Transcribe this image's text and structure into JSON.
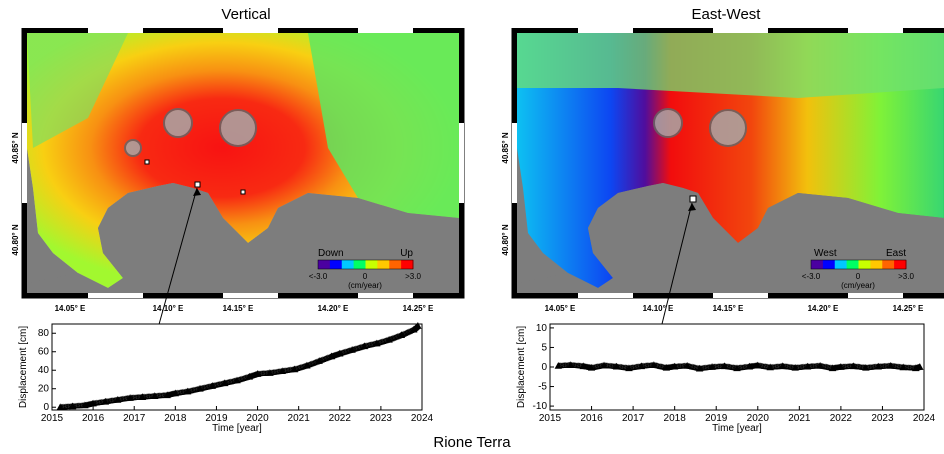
{
  "caption": "Rione Terra",
  "panels": [
    {
      "title": "Vertical",
      "lat_labels": [
        "40.85° N",
        "40.80° N"
      ],
      "lon_labels": [
        "14.05° E",
        "14.10° E",
        "14.15° E",
        "14.20° E",
        "14.25° E"
      ],
      "colorbar": {
        "left_label": "Down",
        "right_label": "Up",
        "min_label": "<-3.0",
        "mid_label": "0",
        "max_label": ">3.0",
        "unit": "(cm/year)",
        "colors": [
          "#4b00a0",
          "#0000ff",
          "#00c8ff",
          "#00ff64",
          "#c8ff00",
          "#ffc800",
          "#ff6400",
          "#ff0000"
        ]
      }
    },
    {
      "title": "East-West",
      "lat_labels": [
        "40.85° N",
        "40.80° N"
      ],
      "lon_labels": [
        "14.05° E",
        "14.10° E",
        "14.15° E",
        "14.20° E",
        "14.25° E"
      ],
      "colorbar": {
        "left_label": "West",
        "right_label": "East",
        "min_label": "<-3.0",
        "mid_label": "0",
        "max_label": ">3.0",
        "unit": "(cm/year)",
        "colors": [
          "#4b00a0",
          "#0000ff",
          "#00c8ff",
          "#00ff64",
          "#c8ff00",
          "#ffc800",
          "#ff6400",
          "#ff0000"
        ]
      }
    }
  ],
  "chart_data": [
    {
      "type": "scatter",
      "title": "",
      "xlabel": "Time [year]",
      "ylabel": "Displacement [cm]",
      "xlim": [
        2015,
        2024
      ],
      "ylim": [
        -3,
        90
      ],
      "xticks": [
        2015,
        2016,
        2017,
        2018,
        2019,
        2020,
        2021,
        2022,
        2023,
        2024
      ],
      "yticks": [
        0,
        20,
        40,
        60,
        80
      ],
      "grid": false,
      "series": [
        {
          "x": [
            2015.2,
            2015.5,
            2015.8,
            2016.0,
            2016.3,
            2016.6,
            2016.9,
            2017.2,
            2017.5,
            2017.8,
            2018.0,
            2018.3,
            2018.6,
            2018.9,
            2019.2,
            2019.5,
            2019.8,
            2020.0,
            2020.3,
            2020.6,
            2020.9,
            2021.2,
            2021.5,
            2021.8,
            2022.0,
            2022.3,
            2022.6,
            2022.9,
            2023.2,
            2023.5,
            2023.8,
            2023.9
          ],
          "y": [
            0,
            1,
            2,
            4,
            6,
            8,
            10,
            11,
            12,
            13,
            15,
            17,
            20,
            23,
            26,
            29,
            33,
            36,
            37,
            39,
            41,
            45,
            50,
            55,
            58,
            62,
            66,
            69,
            73,
            78,
            84,
            88
          ]
        }
      ]
    },
    {
      "type": "scatter",
      "title": "",
      "xlabel": "Time [year]",
      "ylabel": "Displacement [cm]",
      "xlim": [
        2015,
        2024
      ],
      "ylim": [
        -11,
        11
      ],
      "xticks": [
        2015,
        2016,
        2017,
        2018,
        2019,
        2020,
        2021,
        2022,
        2023,
        2024
      ],
      "yticks": [
        10,
        5,
        0,
        -5,
        -10
      ],
      "grid": false,
      "series": [
        {
          "x": [
            2015.2,
            2015.5,
            2015.8,
            2016.0,
            2016.3,
            2016.6,
            2016.9,
            2017.2,
            2017.5,
            2017.8,
            2018.0,
            2018.3,
            2018.6,
            2018.9,
            2019.2,
            2019.5,
            2019.8,
            2020.0,
            2020.3,
            2020.6,
            2020.9,
            2021.2,
            2021.5,
            2021.8,
            2022.0,
            2022.3,
            2022.6,
            2022.9,
            2023.2,
            2023.5,
            2023.8,
            2023.9
          ],
          "y": [
            0.3,
            0.5,
            0.2,
            -0.2,
            0.4,
            0.1,
            -0.3,
            0.2,
            0.5,
            -0.2,
            0.1,
            0.3,
            -0.4,
            0.0,
            0.2,
            -0.3,
            0.1,
            0.4,
            -0.1,
            0.2,
            -0.2,
            0.1,
            0.3,
            -0.3,
            0.0,
            0.2,
            -0.2,
            0.1,
            0.3,
            -0.1,
            -0.3,
            0.0
          ]
        }
      ]
    }
  ]
}
